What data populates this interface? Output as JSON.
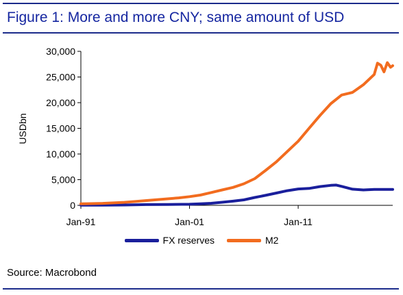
{
  "title": "Figure 1: More and more CNY; same amount of USD",
  "source": "Source: Macrobond",
  "colors": {
    "title": "#1526a0",
    "fx": "#1a1f9c",
    "m2": "#f26c1f",
    "rule": "#1a2a8a"
  },
  "chart_data": {
    "type": "line",
    "title": "Figure 1: More and more CNY; same amount of USD",
    "xlabel": "",
    "ylabel": "USDbn",
    "xlim": [
      1991.0,
      2019.7
    ],
    "ylim": [
      0,
      30000
    ],
    "x_ticks": [
      {
        "label": "Jan-91",
        "value": 1991.0
      },
      {
        "label": "Jan-01",
        "value": 2001.0
      },
      {
        "label": "Jan-11",
        "value": 2011.0
      }
    ],
    "y_ticks": [
      {
        "label": "0",
        "value": 0
      },
      {
        "label": "5,000",
        "value": 5000
      },
      {
        "label": "10,000",
        "value": 10000
      },
      {
        "label": "15,000",
        "value": 15000
      },
      {
        "label": "20,000",
        "value": 20000
      },
      {
        "label": "25,000",
        "value": 25000
      },
      {
        "label": "30,000",
        "value": 30000
      }
    ],
    "grid": false,
    "legend_position": "bottom",
    "series": [
      {
        "name": "FX reserves",
        "color": "#1a1f9c",
        "points": [
          [
            1991.0,
            30
          ],
          [
            1993.0,
            30
          ],
          [
            1995.0,
            70
          ],
          [
            1997.0,
            140
          ],
          [
            1999.0,
            160
          ],
          [
            2001.0,
            210
          ],
          [
            2002.0,
            290
          ],
          [
            2003.0,
            400
          ],
          [
            2004.0,
            600
          ],
          [
            2005.0,
            820
          ],
          [
            2006.0,
            1070
          ],
          [
            2007.0,
            1530
          ],
          [
            2008.0,
            1950
          ],
          [
            2009.0,
            2400
          ],
          [
            2010.0,
            2850
          ],
          [
            2011.0,
            3180
          ],
          [
            2012.0,
            3300
          ],
          [
            2013.0,
            3650
          ],
          [
            2014.0,
            3900
          ],
          [
            2014.5,
            3950
          ],
          [
            2015.0,
            3700
          ],
          [
            2016.0,
            3150
          ],
          [
            2017.0,
            3000
          ],
          [
            2018.0,
            3100
          ],
          [
            2019.0,
            3100
          ],
          [
            2019.7,
            3110
          ]
        ]
      },
      {
        "name": "M2",
        "color": "#f26c1f",
        "points": [
          [
            1991.0,
            300
          ],
          [
            1993.0,
            380
          ],
          [
            1995.0,
            580
          ],
          [
            1996.0,
            750
          ],
          [
            1998.0,
            1100
          ],
          [
            2000.0,
            1450
          ],
          [
            2001.0,
            1700
          ],
          [
            2002.0,
            2000
          ],
          [
            2003.0,
            2500
          ],
          [
            2004.0,
            3000
          ],
          [
            2005.0,
            3500
          ],
          [
            2006.0,
            4200
          ],
          [
            2007.0,
            5200
          ],
          [
            2008.0,
            6800
          ],
          [
            2009.0,
            8500
          ],
          [
            2010.0,
            10500
          ],
          [
            2011.0,
            12500
          ],
          [
            2012.0,
            15000
          ],
          [
            2013.0,
            17500
          ],
          [
            2014.0,
            19800
          ],
          [
            2015.0,
            21500
          ],
          [
            2016.0,
            22000
          ],
          [
            2017.0,
            23500
          ],
          [
            2018.0,
            25500
          ],
          [
            2018.3,
            27700
          ],
          [
            2018.6,
            27300
          ],
          [
            2018.9,
            26000
          ],
          [
            2019.2,
            27800
          ],
          [
            2019.5,
            26900
          ],
          [
            2019.7,
            27200
          ]
        ]
      }
    ]
  }
}
